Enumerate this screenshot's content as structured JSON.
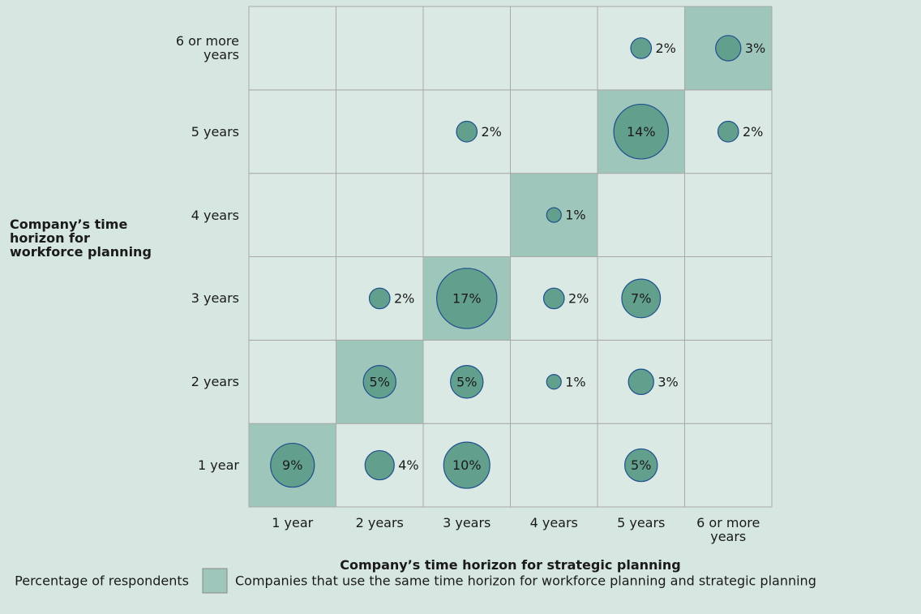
{
  "chart_data": {
    "type": "bubble-matrix",
    "x_label": "Company’s time horizon for strategic planning",
    "y_label": "Company’s time horizon for workforce planning",
    "x_categories": [
      "1 year",
      "2 years",
      "3 years",
      "4 years",
      "5 years",
      "6 or more years"
    ],
    "y_categories": [
      "1 year",
      "2 years",
      "3 years",
      "4 years",
      "5 years",
      "6 or more years"
    ],
    "values": [
      [
        9,
        4,
        10,
        null,
        5,
        null
      ],
      [
        null,
        5,
        5,
        1,
        3,
        null
      ],
      [
        null,
        2,
        17,
        2,
        7,
        null
      ],
      [
        null,
        null,
        null,
        1,
        null,
        null
      ],
      [
        null,
        null,
        2,
        null,
        14,
        2
      ],
      [
        null,
        null,
        null,
        null,
        2,
        3
      ]
    ],
    "value_labels": [
      [
        "9%",
        "4%",
        "10%",
        null,
        "5%",
        null
      ],
      [
        null,
        "5%",
        "5%",
        "1%",
        "3%",
        null
      ],
      [
        null,
        "2%",
        "17%",
        "2%",
        "7%",
        null
      ],
      [
        null,
        null,
        null,
        "1%",
        null,
        null
      ],
      [
        null,
        null,
        "2%",
        null,
        "14%",
        "2%"
      ],
      [
        null,
        null,
        null,
        null,
        "2%",
        "3%"
      ]
    ],
    "legend": [
      "Percentage of respondents",
      "Companies that use the same time horizon for workforce planning and strategic planning"
    ],
    "color": "#62a08d",
    "highlight_color": "#9fc6bb"
  }
}
